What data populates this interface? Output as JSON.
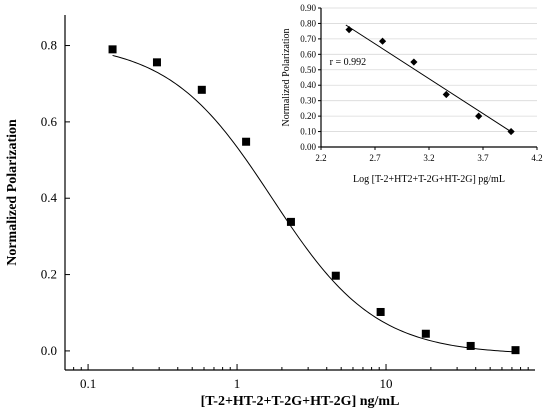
{
  "chart_data": [
    {
      "type": "scatter",
      "xlabel": "[T-2+HT-2+T-2G+HT-2G] ng/mL",
      "ylabel": "Normalized Polarization",
      "xscale": "log",
      "xlim": [
        0.07,
        100
      ],
      "ylim": [
        -0.05,
        0.88
      ],
      "x_ticks": [
        0.1,
        1,
        10
      ],
      "x_tick_labels": [
        "0.1",
        "1",
        "10"
      ],
      "y_ticks": [
        0.0,
        0.2,
        0.4,
        0.6,
        0.8
      ],
      "y_tick_labels": [
        "0.0",
        "0.2",
        "0.4",
        "0.6",
        "0.8"
      ],
      "grid": false,
      "marker": "square",
      "series": [
        {
          "x": [
            0.146,
            0.29,
            0.58,
            1.15,
            2.3,
            4.6,
            9.2,
            18.5,
            37,
            74
          ],
          "y": [
            0.79,
            0.756,
            0.684,
            0.548,
            0.338,
            0.197,
            0.102,
            0.045,
            0.013,
            0.002
          ]
        }
      ],
      "fit": {
        "type": "four-parameter logistic",
        "top": 0.81,
        "bottom": -0.01,
        "ec50": 1.72,
        "slope": 1.25
      }
    },
    {
      "type": "scatter",
      "xlabel": "Log [T-2+HT2+T-2G+HT-2G] pg/mL",
      "ylabel": "Normalized Polarization",
      "xlim": [
        2.2,
        4.2
      ],
      "ylim": [
        0.0,
        0.9
      ],
      "x_ticks": [
        2.2,
        2.7,
        3.2,
        3.7,
        4.2
      ],
      "x_tick_labels": [
        "2.2",
        "2.7",
        "3.2",
        "3.7",
        "4.2"
      ],
      "y_ticks": [
        0.0,
        0.1,
        0.2,
        0.3,
        0.4,
        0.5,
        0.6,
        0.7,
        0.8,
        0.9
      ],
      "y_tick_labels": [
        "0.00",
        "0.10",
        "0.20",
        "0.30",
        "0.40",
        "0.50",
        "0.60",
        "0.70",
        "0.80",
        "0.90"
      ],
      "grid": true,
      "marker": "diamond",
      "annotation": "r = 0.992",
      "series": [
        {
          "x": [
            2.46,
            2.77,
            3.06,
            3.36,
            3.66,
            3.96
          ],
          "y": [
            0.76,
            0.685,
            0.55,
            0.34,
            0.2,
            0.1
          ]
        }
      ],
      "fit": {
        "type": "linear",
        "x_range": [
          2.43,
          3.98
        ],
        "y_range": [
          0.79,
          0.09
        ]
      }
    }
  ]
}
